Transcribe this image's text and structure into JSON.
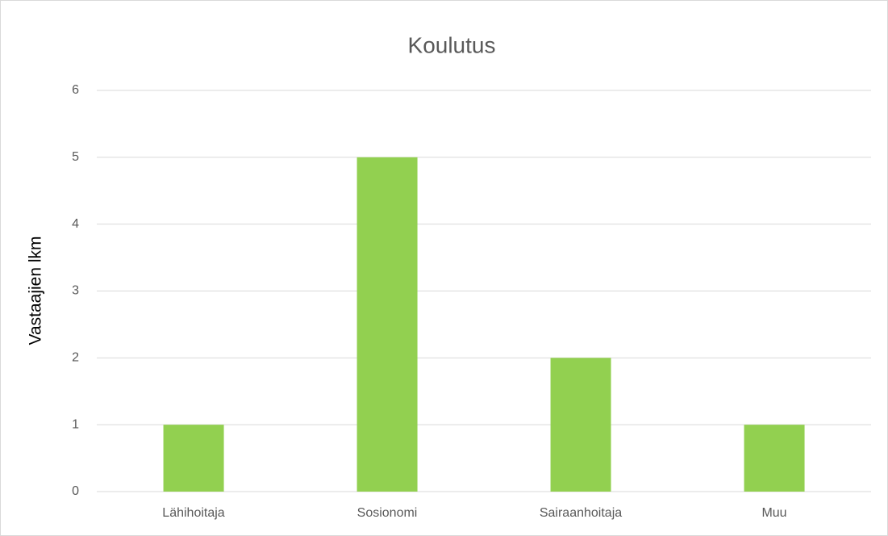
{
  "chart_data": {
    "type": "bar",
    "title": "Koulutus",
    "y_label": "Vastaajien lkm",
    "categories": [
      "Lähihoitaja",
      "Sosionomi",
      "Sairaanhoitaja",
      "Muu"
    ],
    "values": [
      1,
      5,
      2,
      1
    ],
    "color": "#92d050",
    "ylim": [
      0,
      6
    ],
    "yticks": [
      0,
      1,
      2,
      3,
      4,
      5,
      6
    ],
    "grid": true
  }
}
